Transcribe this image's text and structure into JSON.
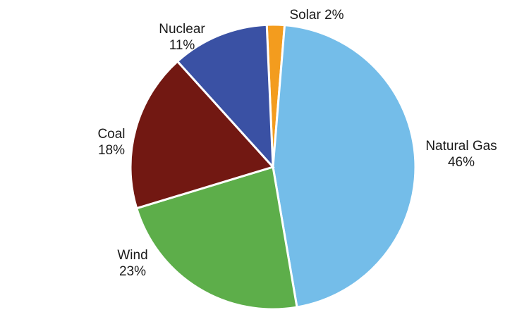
{
  "chart_data": {
    "type": "pie",
    "title": "",
    "legend": "none",
    "categories": [
      "Solar",
      "Natural Gas",
      "Wind",
      "Coal",
      "Nuclear"
    ],
    "values": [
      2,
      46,
      23,
      18,
      11
    ],
    "labels": [
      {
        "name": "Solar",
        "percent": "2%",
        "layout": "inline"
      },
      {
        "name": "Natural Gas",
        "percent": "46%",
        "layout": "stacked"
      },
      {
        "name": "Wind",
        "percent": "23%",
        "layout": "stacked"
      },
      {
        "name": "Coal",
        "percent": "18%",
        "layout": "stacked"
      },
      {
        "name": "Nuclear",
        "percent": "11%",
        "layout": "stacked"
      }
    ],
    "colors": [
      "#f39c1e",
      "#74bde9",
      "#5dae4a",
      "#721812",
      "#3a51a4"
    ]
  }
}
